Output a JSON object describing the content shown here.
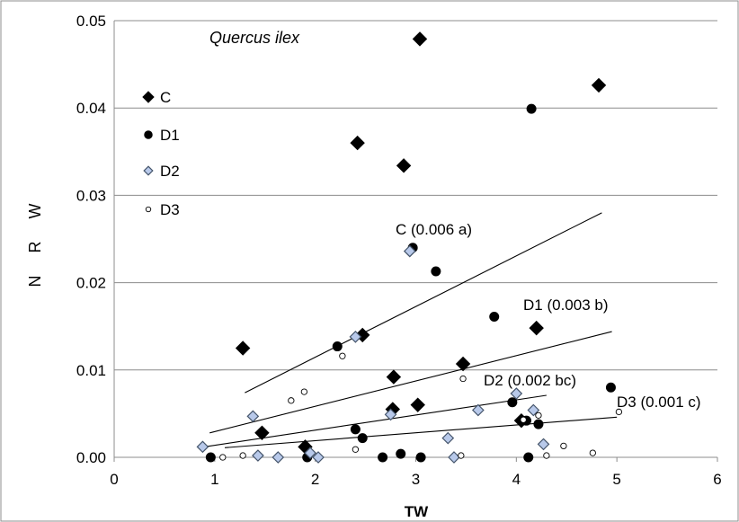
{
  "chart_data": {
    "type": "scatter",
    "title": "Quercus ilex",
    "xlabel": "TW",
    "ylabel": "N R W",
    "xlim": [
      0,
      6
    ],
    "ylim": [
      0,
      0.05
    ],
    "x_ticks": [
      "0",
      "1",
      "2",
      "3",
      "4",
      "5",
      "6"
    ],
    "y_ticks": [
      "0.00",
      "0.01",
      "0.02",
      "0.03",
      "0.04",
      "0.05"
    ],
    "grid": "horizontal",
    "legend_position": "left",
    "series": [
      {
        "name": "C",
        "marker": "diamond",
        "fill": "#000000",
        "stroke": "#000000",
        "points": [
          [
            1.28,
            0.0125
          ],
          [
            1.47,
            0.0028
          ],
          [
            1.9,
            0.0012
          ],
          [
            2.42,
            0.036
          ],
          [
            2.47,
            0.014
          ],
          [
            2.78,
            0.0092
          ],
          [
            2.77,
            0.0055
          ],
          [
            2.88,
            0.0334
          ],
          [
            3.02,
            0.006
          ],
          [
            3.04,
            0.0479
          ],
          [
            3.47,
            0.0107
          ],
          [
            4.05,
            0.0042
          ],
          [
            4.2,
            0.0148
          ],
          [
            4.82,
            0.0426
          ]
        ],
        "fit": [
          [
            1.3,
            0.0074
          ],
          [
            4.85,
            0.028
          ]
        ],
        "fit_label": "C (0.006 a)"
      },
      {
        "name": "D1",
        "marker": "circle",
        "fill": "#000000",
        "stroke": "#000000",
        "points": [
          [
            0.96,
            0.0
          ],
          [
            1.92,
            0.0
          ],
          [
            2.22,
            0.0127
          ],
          [
            2.4,
            0.0032
          ],
          [
            2.47,
            0.0022
          ],
          [
            2.67,
            0.0
          ],
          [
            2.85,
            0.0004
          ],
          [
            2.97,
            0.024
          ],
          [
            3.05,
            0.0
          ],
          [
            3.2,
            0.0213
          ],
          [
            3.78,
            0.0161
          ],
          [
            3.96,
            0.0063
          ],
          [
            4.1,
            0.0042
          ],
          [
            4.12,
            0.0
          ],
          [
            4.15,
            0.0399
          ],
          [
            4.22,
            0.0038
          ],
          [
            4.94,
            0.008
          ]
        ],
        "fit": [
          [
            0.95,
            0.0028
          ],
          [
            4.95,
            0.0144
          ]
        ],
        "fit_label": "D1 (0.003 b)"
      },
      {
        "name": "D2",
        "marker": "diamond",
        "fill": "#b8c9ea",
        "stroke": "#44546a",
        "points": [
          [
            0.88,
            0.0012
          ],
          [
            1.38,
            0.0047
          ],
          [
            1.43,
            0.0002
          ],
          [
            1.63,
            0.0
          ],
          [
            1.95,
            0.0005
          ],
          [
            2.03,
            0.0
          ],
          [
            2.4,
            0.0138
          ],
          [
            2.75,
            0.0049
          ],
          [
            2.94,
            0.0236
          ],
          [
            3.32,
            0.0022
          ],
          [
            3.38,
            0.0
          ],
          [
            3.62,
            0.0054
          ],
          [
            4.0,
            0.0073
          ],
          [
            4.17,
            0.0054
          ],
          [
            4.27,
            0.0015
          ]
        ],
        "fit": [
          [
            0.9,
            0.0012
          ],
          [
            4.3,
            0.0071
          ]
        ],
        "fit_label": "D2 (0.002 bc)"
      },
      {
        "name": "D3",
        "marker": "circle",
        "fill": "#ffffff",
        "stroke": "#000000",
        "points": [
          [
            1.08,
            0.0
          ],
          [
            1.28,
            0.0002
          ],
          [
            1.76,
            0.0065
          ],
          [
            1.89,
            0.0075
          ],
          [
            2.27,
            0.0116
          ],
          [
            2.4,
            0.0009
          ],
          [
            3.45,
            0.0002
          ],
          [
            3.47,
            0.009
          ],
          [
            4.07,
            0.0043
          ],
          [
            4.22,
            0.0048
          ],
          [
            4.3,
            0.0002
          ],
          [
            4.47,
            0.0013
          ],
          [
            4.76,
            0.0005
          ],
          [
            5.02,
            0.0052
          ]
        ],
        "fit": [
          [
            1.1,
            0.0011
          ],
          [
            5.0,
            0.0046
          ]
        ],
        "fit_label": "D3 (0.001 c)"
      }
    ]
  }
}
